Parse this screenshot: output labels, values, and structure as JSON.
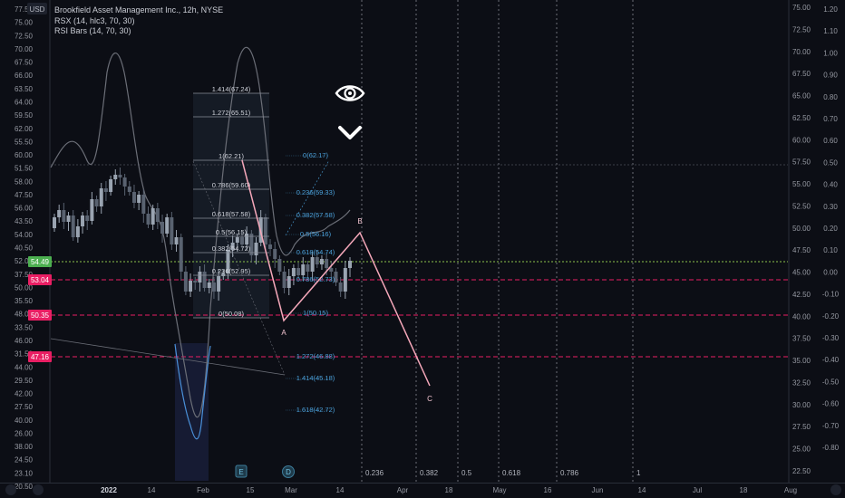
{
  "chart_data": {
    "type": "candlestick",
    "title": "Brookfield Asset Management Inc., 12h, NYSE",
    "indicators": [
      "RSX (14, hlc3, 70, 30)",
      "RSI Bars (14, 70, 30)"
    ],
    "currency": "USD",
    "left_scale_upper": [
      "77.50",
      "75.00",
      "72.50",
      "70.00",
      "67.50",
      "65.00",
      "63.50",
      "62.50",
      "59.50",
      "60.00",
      "55.50",
      "58.00",
      "51.50",
      "56.00",
      "47.50",
      "54.00",
      "43.50",
      "52.00",
      "40.50",
      "37.50",
      "35.50",
      "33.50",
      "31.50",
      "29.50",
      "27.50",
      "26.00",
      "24.50",
      "23.10",
      "22.50",
      "20.50"
    ],
    "left_scale_top": [
      "77.50",
      "75.00",
      "72.50",
      "70.00",
      "67.50",
      "65.00",
      "63.50",
      "62.50",
      "59.50",
      "60.00",
      "55.50",
      "58.00",
      "51.50",
      "56.00",
      "47.50",
      "54.00",
      "43.50",
      "52.00",
      "40.50",
      "37.50",
      "35.50",
      "33.50",
      "31.50",
      "29.50",
      "27.50",
      "26.00",
      "24.50",
      "23.10",
      "22.50",
      "20.50"
    ],
    "left_scale": [
      "77.50",
      "75.00",
      "72.50",
      "70.00",
      "67.50",
      "66.00",
      "63.50",
      "64.00",
      "59.50",
      "62.00",
      "55.50",
      "60.00",
      "51.50",
      "58.00",
      "47.50",
      "56.00",
      "43.50",
      "54.00",
      "40.50",
      "52.00",
      "37.50",
      "50.00",
      "35.50",
      "48.00",
      "33.50",
      "46.00",
      "31.50",
      "44.00",
      "29.50",
      "42.00",
      "27.50",
      "40.00",
      "26.00",
      "38.00",
      "24.50",
      "23.10",
      "20.50"
    ],
    "right_scale_price": [
      "75.00",
      "72.50",
      "70.00",
      "67.50",
      "65.00",
      "62.50",
      "60.00",
      "57.50",
      "55.00",
      "52.50",
      "50.00",
      "47.50",
      "45.00",
      "42.50",
      "40.00",
      "37.50",
      "35.00",
      "32.50",
      "30.00",
      "27.50",
      "25.00",
      "22.50"
    ],
    "right_scale_osc": [
      "1.20",
      "1.10",
      "1.00",
      "0.90",
      "0.80",
      "0.70",
      "0.60",
      "0.50",
      "0.40",
      "0.30",
      "0.20",
      "0.10",
      "0.00",
      "-0.10",
      "-0.20",
      "-0.30",
      "-0.40",
      "-0.50",
      "-0.60",
      "-0.70",
      "-0.80"
    ],
    "x_ticks": [
      "2022",
      "14",
      "Feb",
      "15",
      "Mar",
      "14",
      "Apr",
      "18",
      "May",
      "16",
      "Jun",
      "14",
      "Jul",
      "18",
      "Aug"
    ],
    "price_badges": [
      {
        "label": "54.49",
        "color": "#4caf50"
      },
      {
        "label": "53.04",
        "color": "#e91e63"
      },
      {
        "label": "50.35",
        "color": "#e91e63"
      },
      {
        "label": "47.16",
        "color": "#e91e63"
      }
    ],
    "fib_retracement": [
      {
        "label": "1.414(67.24)"
      },
      {
        "label": "1.272(65.51)"
      },
      {
        "label": "1(62.21)"
      },
      {
        "label": "0.786(59.60)"
      },
      {
        "label": "0.618(57.58)"
      },
      {
        "label": "0.5(56.15)"
      },
      {
        "label": "0.382(54.72)"
      },
      {
        "label": "0.236(52.95)"
      },
      {
        "label": "0(50.08)"
      }
    ],
    "fib_extension": [
      {
        "label": "0(62.17)"
      },
      {
        "label": "0.236(59.33)"
      },
      {
        "label": "0.382(57.58)"
      },
      {
        "label": "0.5(56.16)"
      },
      {
        "label": "0.618(54.74)"
      },
      {
        "label": "0.786(52.73)"
      },
      {
        "label": "1(50.15)"
      },
      {
        "label": "1.272(46.88)"
      },
      {
        "label": "1.414(45.18)"
      },
      {
        "label": "1.618(42.72)"
      }
    ],
    "time_fib": [
      "0.236",
      "0.382",
      "0.5",
      "0.618",
      "0.786",
      "1"
    ],
    "wave_labels": [
      "A",
      "B",
      "C"
    ],
    "event_markers": [
      "E",
      "D"
    ],
    "colors": {
      "up": "#9aa4b1",
      "down": "#596270",
      "fib_ret": "#b2b5be",
      "fib_ext": "#4a9fd8",
      "wave": "#f4a7b9",
      "hline": "#e91e63",
      "rsx": "#7a7d86",
      "rsi_dip": "#4a90d9"
    }
  }
}
